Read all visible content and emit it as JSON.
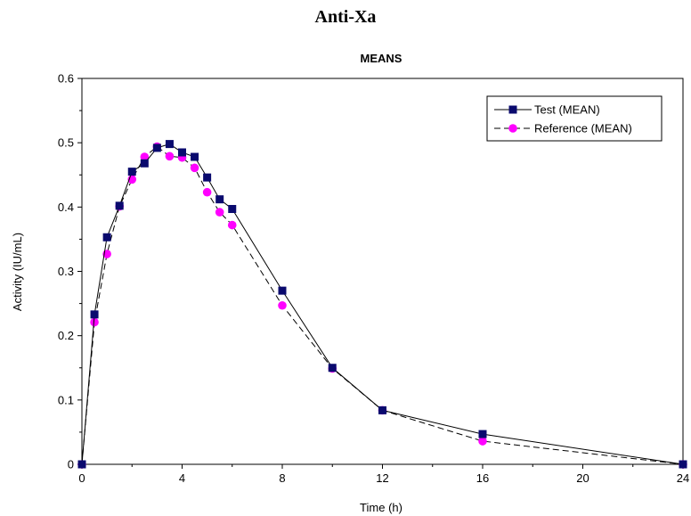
{
  "chart_data": {
    "type": "line",
    "title": "Anti-Xa",
    "subtitle": "MEANS",
    "xlabel": "Time (h)",
    "ylabel": "Activity  (IU/mL)",
    "xlim": [
      0,
      24
    ],
    "ylim": [
      0,
      0.6
    ],
    "x_ticks": [
      "0",
      "4",
      "8",
      "12",
      "16",
      "20",
      "24"
    ],
    "y_ticks": [
      "0",
      "0.1",
      "0.2",
      "0.3",
      "0.4",
      "0.5",
      "0.6"
    ],
    "grid": false,
    "legend_position": "top-right",
    "series": [
      {
        "name": "Test (MEAN)",
        "color": "#0a0a6e",
        "marker": "square",
        "line_style": "solid",
        "x": [
          0,
          0.5,
          1,
          1.5,
          2,
          2.5,
          3,
          3.5,
          4,
          4.5,
          5,
          5.5,
          6,
          8,
          10,
          12,
          16,
          24
        ],
        "y": [
          0,
          0.233,
          0.353,
          0.402,
          0.455,
          0.468,
          0.492,
          0.498,
          0.485,
          0.478,
          0.446,
          0.412,
          0.397,
          0.27,
          0.15,
          0.084,
          0.047,
          0
        ]
      },
      {
        "name": "Reference (MEAN)",
        "color": "#ff00ff",
        "marker": "circle",
        "line_style": "dashed",
        "x": [
          0,
          0.5,
          1,
          1.5,
          2,
          2.5,
          3,
          3.5,
          4,
          4.5,
          5,
          5.5,
          6,
          8,
          10,
          12,
          16,
          24
        ],
        "y": [
          0,
          0.221,
          0.327,
          0.401,
          0.443,
          0.478,
          0.494,
          0.479,
          0.477,
          0.461,
          0.423,
          0.392,
          0.372,
          0.247,
          0.149,
          0.084,
          0.036,
          0
        ]
      }
    ]
  }
}
